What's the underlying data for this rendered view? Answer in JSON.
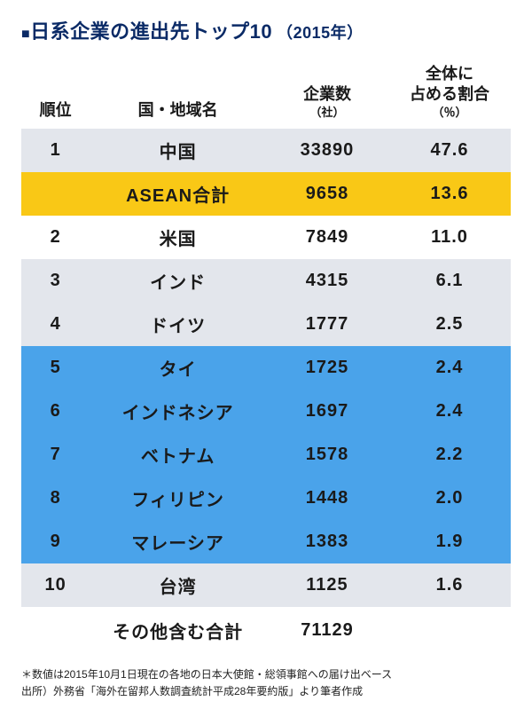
{
  "title": {
    "square": "■",
    "text": "日系企業の進出先トップ10",
    "year": "（2015年）",
    "color": "#0a2a66",
    "square_color": "#0a2a66"
  },
  "colors": {
    "gray_row": "#e3e6ec",
    "yellow_row": "#f9c816",
    "blue_row": "#4aa3ea",
    "white": "#ffffff",
    "text": "#1a1a1a"
  },
  "table": {
    "headers": {
      "rank": "順位",
      "country": "国・地域名",
      "count": "企業数",
      "count_unit": "（社）",
      "pct": "全体に\n占める割合",
      "pct_unit": "（％）"
    },
    "rows": [
      {
        "rank": "1",
        "country": "中国",
        "count": "33890",
        "pct": "47.6",
        "style": "gray"
      },
      {
        "rank": "",
        "country": "ASEAN合計",
        "count": "9658",
        "pct": "13.6",
        "style": "yellow"
      },
      {
        "rank": "2",
        "country": "米国",
        "count": "7849",
        "pct": "11.0",
        "style": "white"
      },
      {
        "rank": "3",
        "country": "インド",
        "count": "4315",
        "pct": "6.1",
        "style": "gray"
      },
      {
        "rank": "4",
        "country": "ドイツ",
        "count": "1777",
        "pct": "2.5",
        "style": "gray"
      },
      {
        "rank": "5",
        "country": "タイ",
        "count": "1725",
        "pct": "2.4",
        "style": "blue"
      },
      {
        "rank": "6",
        "country": "インドネシア",
        "count": "1697",
        "pct": "2.4",
        "style": "blue"
      },
      {
        "rank": "7",
        "country": "ベトナム",
        "count": "1578",
        "pct": "2.2",
        "style": "blue"
      },
      {
        "rank": "8",
        "country": "フィリピン",
        "count": "1448",
        "pct": "2.0",
        "style": "blue"
      },
      {
        "rank": "9",
        "country": "マレーシア",
        "count": "1383",
        "pct": "1.9",
        "style": "blue"
      },
      {
        "rank": "10",
        "country": "台湾",
        "count": "1125",
        "pct": "1.6",
        "style": "gray"
      }
    ],
    "total": {
      "label": "その他含む合計",
      "value": "71129"
    }
  },
  "footnotes": [
    "＊数値は2015年10月1日現在の各地の日本大使館・総領事館への届け出ベース",
    "出所）外務省「海外在留邦人数調査統計平成28年要約版」より筆者作成"
  ]
}
